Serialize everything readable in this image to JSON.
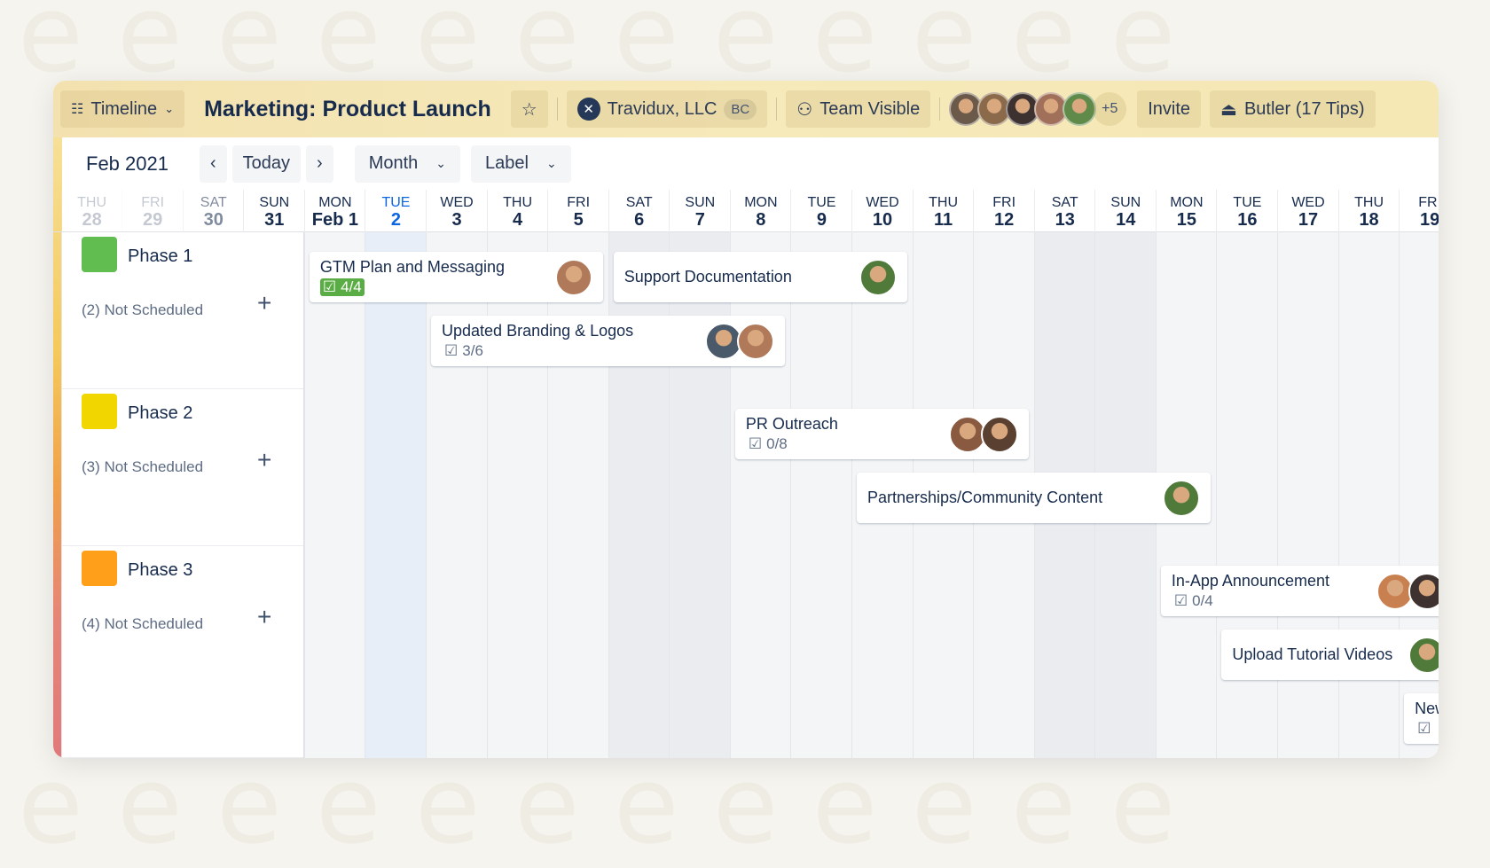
{
  "header": {
    "view_label": "Timeline",
    "board_title": "Marketing: Product Launch",
    "workspace": "Travidux, LLC",
    "workspace_badge": "BC",
    "visibility": "Team Visible",
    "members_more": "+5",
    "invite_label": "Invite",
    "butler_label": "Butler (17 Tips)",
    "member_colors": [
      "#6b5a4a",
      "#8a6a4a",
      "#3d3230",
      "#a0705a",
      "#5f8a4a"
    ]
  },
  "toolbar": {
    "month_label": "Feb 2021",
    "prev_icon": "chevron-left",
    "today_label": "Today",
    "next_icon": "chevron-right",
    "range_select": "Month",
    "group_select": "Label"
  },
  "days": [
    {
      "dow": "THU",
      "day": "28"
    },
    {
      "dow": "FRI",
      "day": "29"
    },
    {
      "dow": "SAT",
      "day": "30"
    },
    {
      "dow": "SUN",
      "day": "31"
    },
    {
      "dow": "MON",
      "day": "Feb 1"
    },
    {
      "dow": "TUE",
      "day": "2",
      "today": true
    },
    {
      "dow": "WED",
      "day": "3"
    },
    {
      "dow": "THU",
      "day": "4"
    },
    {
      "dow": "FRI",
      "day": "5"
    },
    {
      "dow": "SAT",
      "day": "6"
    },
    {
      "dow": "SUN",
      "day": "7"
    },
    {
      "dow": "MON",
      "day": "8"
    },
    {
      "dow": "TUE",
      "day": "9"
    },
    {
      "dow": "WED",
      "day": "10"
    },
    {
      "dow": "THU",
      "day": "11"
    },
    {
      "dow": "FRI",
      "day": "12"
    },
    {
      "dow": "SAT",
      "day": "13"
    },
    {
      "dow": "SUN",
      "day": "14"
    },
    {
      "dow": "MON",
      "day": "15"
    },
    {
      "dow": "TUE",
      "day": "16"
    },
    {
      "dow": "WED",
      "day": "17"
    },
    {
      "dow": "THU",
      "day": "18"
    },
    {
      "dow": "FRI",
      "day": "19"
    }
  ],
  "groups": [
    {
      "name": "Phase 1",
      "color": "#61bd4f",
      "not_scheduled": "(2) Not Scheduled",
      "cards": [
        {
          "title": "GTM Plan and Messaging",
          "checklist": "4/4",
          "complete": true,
          "start": 1,
          "end": 5,
          "lane": 0,
          "avatars": [
            "#b07a5a"
          ]
        },
        {
          "title": "Support Documentation",
          "start": 6,
          "end": 10,
          "lane": 0,
          "avatars": [
            "#4f7a3a"
          ]
        },
        {
          "title": "Updated Branding & Logos",
          "checklist": "3/6",
          "start": 3,
          "end": 8,
          "lane": 1,
          "avatars": [
            "#4a5a6a",
            "#b07a5a"
          ]
        }
      ]
    },
    {
      "name": "Phase 2",
      "color": "#f2d600",
      "not_scheduled": "(3) Not Scheduled",
      "cards": [
        {
          "title": "PR Outreach",
          "checklist": "0/8",
          "start": 8,
          "end": 12,
          "lane": 0,
          "avatars": [
            "#8a5a40",
            "#5a4030"
          ]
        },
        {
          "title": "Partnerships/Community Content",
          "start": 10,
          "end": 15,
          "lane": 1,
          "avatars": [
            "#4f7a3a"
          ]
        }
      ]
    },
    {
      "name": "Phase 3",
      "color": "#ff9f1a",
      "not_scheduled": "(4) Not Scheduled",
      "cards": [
        {
          "title": "In-App Announcement",
          "checklist": "0/4",
          "start": 15,
          "lane": 0,
          "avatars": [
            "#c98050",
            "#3d3230"
          ]
        },
        {
          "title": "Upload Tutorial Videos",
          "start": 16,
          "lane": 1,
          "avatars": [
            "#4f7a3a"
          ]
        },
        {
          "title": "New",
          "checklist": "",
          "start": 19,
          "lane": 2,
          "avatars": []
        }
      ]
    }
  ]
}
